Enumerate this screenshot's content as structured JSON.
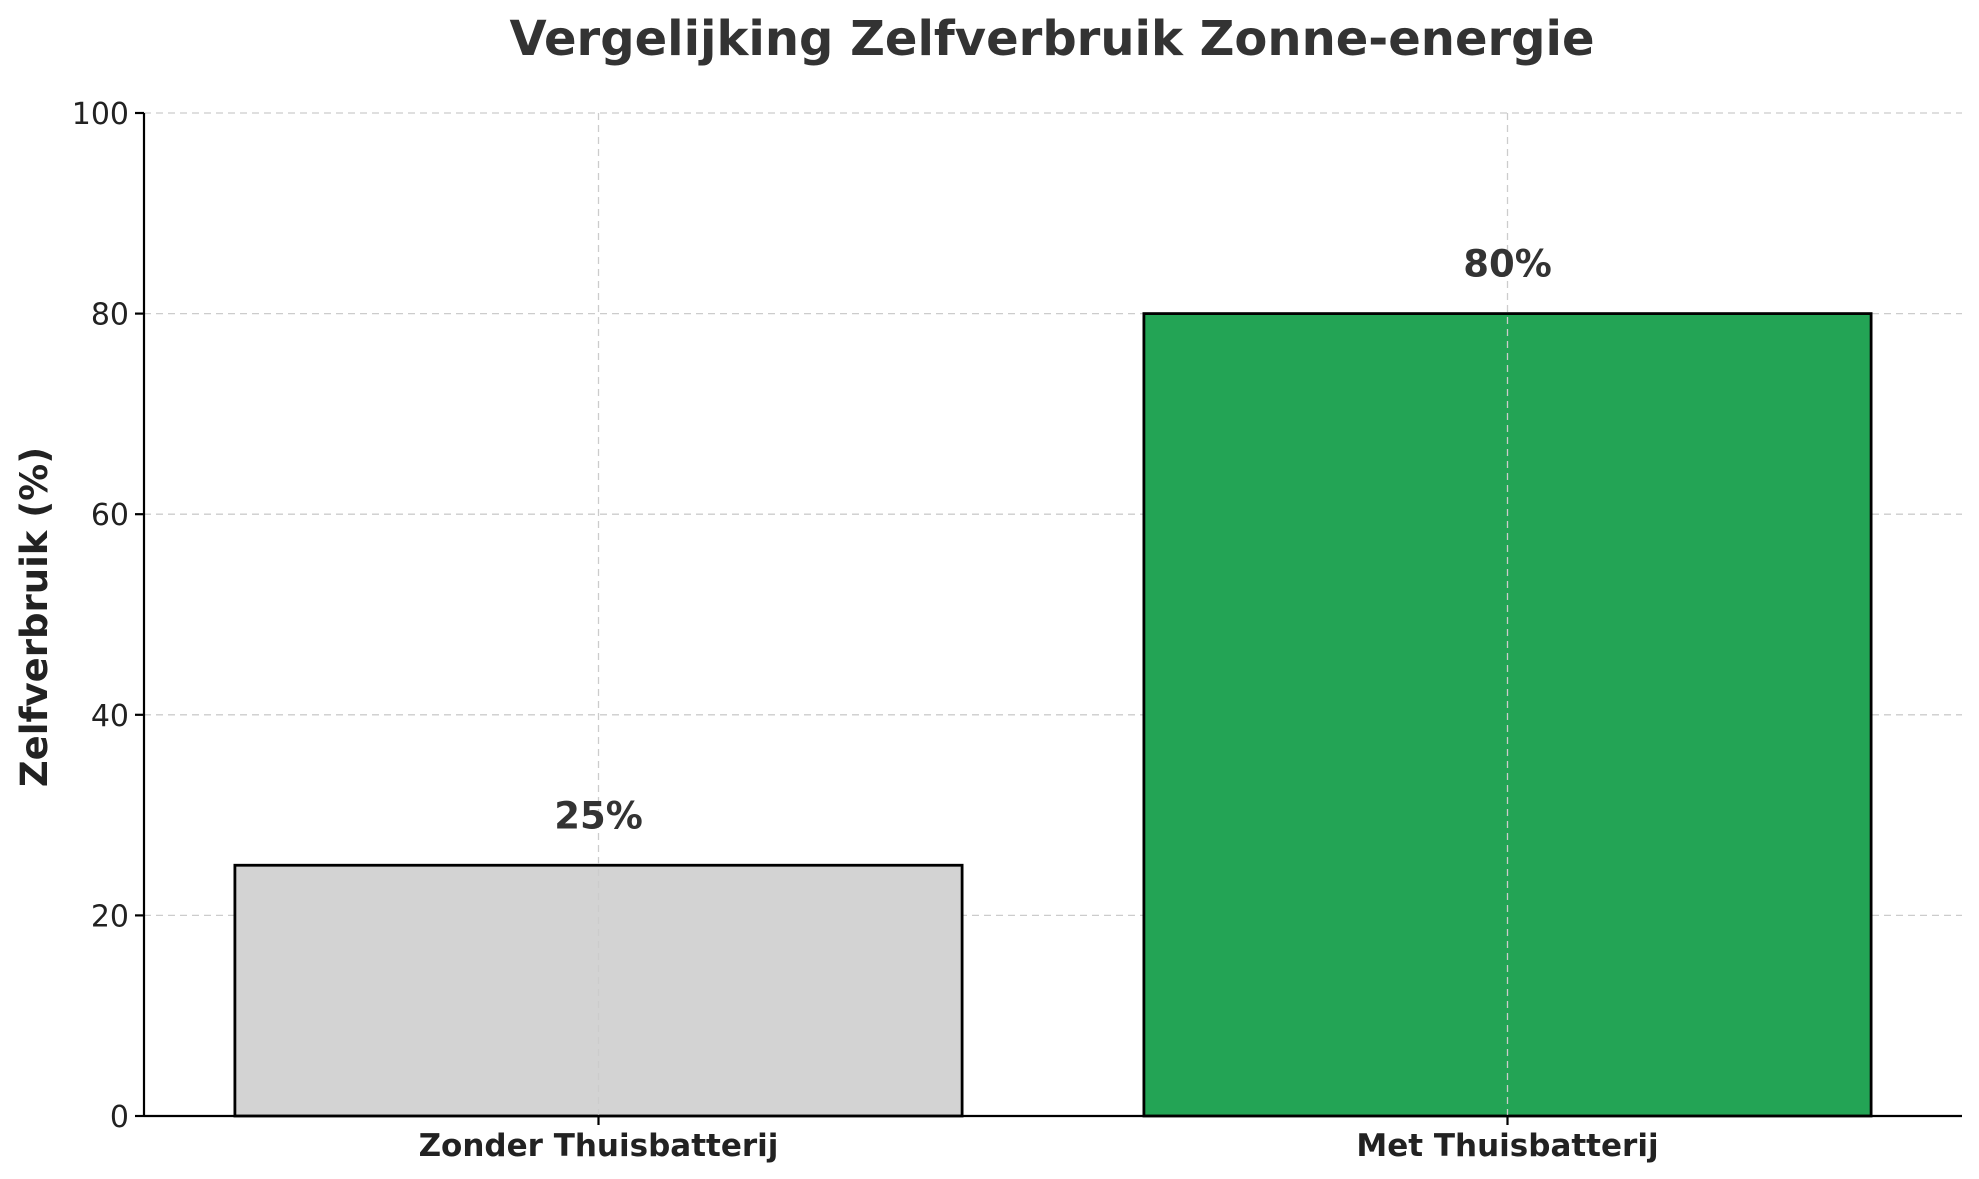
{
  "chart_data": {
    "type": "bar",
    "title": "Vergelijking Zelfverbruik Zonne-energie",
    "xlabel": "",
    "ylabel": "Zelfverbruik (%)",
    "categories": [
      "Zonder Thuisbatterij",
      "Met Thuisbatterij"
    ],
    "values": [
      25,
      80
    ],
    "data_labels": [
      "25%",
      "80%"
    ],
    "colors": [
      "#d3d3d3",
      "#23a455"
    ],
    "ylim": [
      0,
      100
    ],
    "yticks": [
      0,
      20,
      40,
      60,
      80,
      100
    ],
    "grid": true,
    "legend": "none"
  }
}
